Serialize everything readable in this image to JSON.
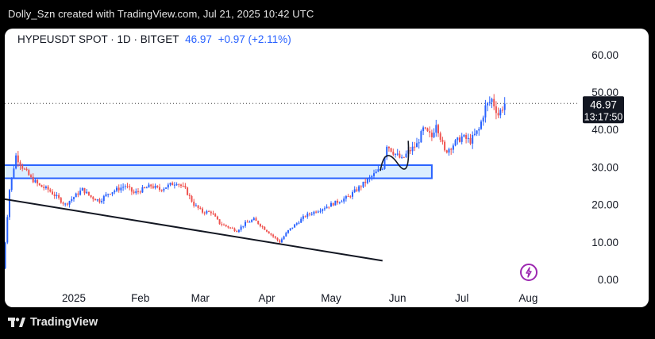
{
  "header": {
    "watermark_text": "Dolly_Szn created with TradingView.com, Jul 21, 2025 10:42 UTC"
  },
  "footer": {
    "brand": "TradingView"
  },
  "legend": {
    "symbol": "HYPEUSDT SPOT · 1D · BITGET",
    "last": "46.97",
    "change": "+0.97 (+2.11%)"
  },
  "price_label": {
    "price": "46.97",
    "countdown": "13:17:50"
  },
  "colors": {
    "up": "#2962ff",
    "down": "#ef5350",
    "zone_fill": "#dbeeff",
    "zone_border": "#2962ff",
    "trendline": "#131722"
  },
  "chart_data": {
    "type": "candlestick",
    "y_ticks": [
      "60.00",
      "50.00",
      "40.00",
      "30.00",
      "20.00",
      "10.00",
      "0.00"
    ],
    "y_tick_values": [
      60,
      50,
      40,
      30,
      20,
      10,
      0
    ],
    "x_ticks": [
      "2025",
      "Feb",
      "Mar",
      "Apr",
      "May",
      "Jun",
      "Jul",
      "Aug"
    ],
    "x_tick_dates": [
      "2025-01-01",
      "2025-02-01",
      "2025-03-01",
      "2025-04-01",
      "2025-05-01",
      "2025-06-01",
      "2025-07-01",
      "2025-08-01"
    ],
    "last_price": 46.97,
    "close_path": [
      [
        "2024-11-29",
        3
      ],
      [
        "2024-12-02",
        24
      ],
      [
        "2024-12-05",
        33
      ],
      [
        "2024-12-08",
        30
      ],
      [
        "2024-12-12",
        27
      ],
      [
        "2024-12-16",
        25
      ],
      [
        "2024-12-20",
        24
      ],
      [
        "2024-12-24",
        22
      ],
      [
        "2024-12-28",
        20
      ],
      [
        "2025-01-01",
        22
      ],
      [
        "2025-01-05",
        24
      ],
      [
        "2025-01-09",
        22
      ],
      [
        "2025-01-13",
        21
      ],
      [
        "2025-01-17",
        23
      ],
      [
        "2025-01-21",
        24
      ],
      [
        "2025-01-25",
        25
      ],
      [
        "2025-01-29",
        23
      ],
      [
        "2025-02-02",
        24
      ],
      [
        "2025-02-06",
        25
      ],
      [
        "2025-02-10",
        24
      ],
      [
        "2025-02-14",
        25
      ],
      [
        "2025-02-18",
        26
      ],
      [
        "2025-02-22",
        24
      ],
      [
        "2025-02-26",
        20
      ],
      [
        "2025-03-02",
        18
      ],
      [
        "2025-03-06",
        18
      ],
      [
        "2025-03-10",
        15
      ],
      [
        "2025-03-14",
        14
      ],
      [
        "2025-03-18",
        13
      ],
      [
        "2025-03-22",
        15
      ],
      [
        "2025-03-26",
        16
      ],
      [
        "2025-03-30",
        14
      ],
      [
        "2025-04-03",
        12
      ],
      [
        "2025-04-07",
        10
      ],
      [
        "2025-04-11",
        13
      ],
      [
        "2025-04-15",
        15
      ],
      [
        "2025-04-19",
        17
      ],
      [
        "2025-04-23",
        18
      ],
      [
        "2025-04-27",
        19
      ],
      [
        "2025-05-01",
        20
      ],
      [
        "2025-05-05",
        21
      ],
      [
        "2025-05-09",
        22
      ],
      [
        "2025-05-13",
        24
      ],
      [
        "2025-05-17",
        26
      ],
      [
        "2025-05-21",
        28
      ],
      [
        "2025-05-25",
        30
      ],
      [
        "2025-05-27",
        36
      ],
      [
        "2025-05-30",
        34
      ],
      [
        "2025-06-03",
        32
      ],
      [
        "2025-06-06",
        34
      ],
      [
        "2025-06-10",
        36
      ],
      [
        "2025-06-13",
        40
      ],
      [
        "2025-06-17",
        38
      ],
      [
        "2025-06-19",
        42
      ],
      [
        "2025-06-23",
        34
      ],
      [
        "2025-06-27",
        36
      ],
      [
        "2025-07-01",
        38
      ],
      [
        "2025-07-05",
        37
      ],
      [
        "2025-07-09",
        40
      ],
      [
        "2025-07-12",
        46
      ],
      [
        "2025-07-15",
        48
      ],
      [
        "2025-07-18",
        44
      ],
      [
        "2025-07-21",
        46.97
      ]
    ],
    "drawings": {
      "zone": {
        "from": "2024-11-29",
        "to": "2025-06-17",
        "low": 27,
        "high": 30.5
      },
      "trendline": [
        [
          "2024-11-29",
          21.5
        ],
        [
          "2025-05-25",
          5
        ]
      ],
      "arc": [
        [
          "2025-05-24",
          29
        ],
        [
          "2025-05-26",
          33
        ],
        [
          "2025-06-01",
          31
        ],
        [
          "2025-06-06",
          37
        ]
      ]
    }
  }
}
